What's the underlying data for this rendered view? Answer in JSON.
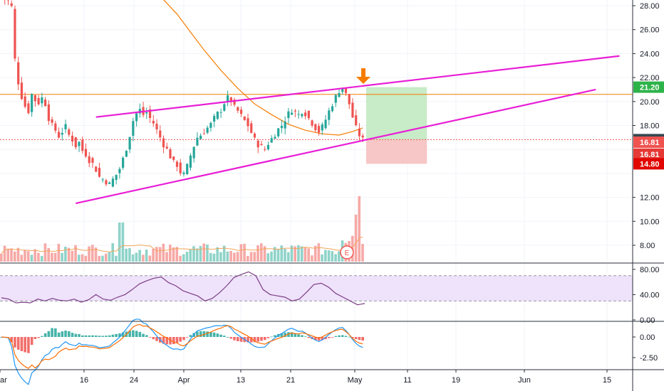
{
  "chart_data": [
    {
      "type": "candlestick",
      "panel": "price",
      "y_ticks": [
        "28.00",
        "26.00",
        "24.00",
        "22.00",
        "20.00",
        "18.00",
        "12.00",
        "10.00",
        "8.00"
      ],
      "ylim": [
        6.8,
        28.8
      ],
      "price_badges": [
        {
          "label": "21.20",
          "value": 21.2,
          "color": "#2eb34a"
        },
        {
          "label": "16.82",
          "value": 16.82,
          "color": "#37474f"
        },
        {
          "label": "16.81",
          "value": 16.6,
          "color": "#ef5350"
        },
        {
          "label": "16.81",
          "value": 15.6,
          "color": "#e53935"
        },
        {
          "label": "14.80",
          "value": 14.8,
          "color": "#e10600"
        }
      ],
      "horizontal_lines": [
        {
          "value": 20.6,
          "color": "#f57c00",
          "style": "solid"
        },
        {
          "value": 16.82,
          "color": "#ef5350",
          "style": "dotted"
        }
      ],
      "close_series": [
        [
          0,
          28.7
        ],
        [
          2,
          28.4
        ],
        [
          3,
          27.9
        ],
        [
          4,
          23.5
        ],
        [
          5,
          21.6
        ],
        [
          6,
          20.4
        ],
        [
          7,
          19.6
        ],
        [
          8,
          19.2
        ],
        [
          9,
          20.6
        ],
        [
          10,
          20.1
        ],
        [
          11,
          19.9
        ],
        [
          12,
          20.3
        ],
        [
          13,
          19.8
        ],
        [
          14,
          18.6
        ],
        [
          15,
          18.0
        ],
        [
          16,
          17.6
        ],
        [
          17,
          17.1
        ],
        [
          18,
          17.5
        ],
        [
          19,
          17.9
        ],
        [
          20,
          17.2
        ],
        [
          21,
          16.8
        ],
        [
          22,
          16.3
        ],
        [
          23,
          16.6
        ],
        [
          24,
          15.9
        ],
        [
          25,
          15.6
        ],
        [
          26,
          15.1
        ],
        [
          27,
          14.8
        ],
        [
          28,
          14.3
        ],
        [
          29,
          13.7
        ],
        [
          30,
          13.5
        ],
        [
          31,
          13.3
        ],
        [
          32,
          13.1
        ],
        [
          33,
          13.5
        ],
        [
          34,
          13.9
        ],
        [
          35,
          14.4
        ],
        [
          36,
          15.2
        ],
        [
          37,
          16.1
        ],
        [
          38,
          17.2
        ],
        [
          39,
          18.4
        ],
        [
          40,
          19.0
        ],
        [
          41,
          19.3
        ],
        [
          42,
          18.9
        ],
        [
          43,
          19.1
        ],
        [
          44,
          18.6
        ],
        [
          45,
          18.2
        ],
        [
          46,
          17.6
        ],
        [
          47,
          17.0
        ],
        [
          48,
          16.4
        ],
        [
          49,
          16.0
        ],
        [
          50,
          15.4
        ],
        [
          51,
          14.9
        ],
        [
          52,
          14.7
        ],
        [
          53,
          14.1
        ],
        [
          54,
          13.9
        ],
        [
          55,
          14.6
        ],
        [
          56,
          15.5
        ],
        [
          57,
          16.3
        ],
        [
          58,
          17.0
        ],
        [
          59,
          17.2
        ],
        [
          60,
          17.5
        ],
        [
          61,
          17.8
        ],
        [
          62,
          18.1
        ],
        [
          63,
          18.6
        ],
        [
          64,
          19.0
        ],
        [
          65,
          19.3
        ],
        [
          66,
          19.9
        ],
        [
          67,
          20.3
        ],
        [
          68,
          20.1
        ],
        [
          69,
          19.5
        ],
        [
          70,
          19.2
        ],
        [
          71,
          18.8
        ],
        [
          72,
          18.4
        ],
        [
          73,
          18.0
        ],
        [
          74,
          17.4
        ],
        [
          75,
          16.8
        ],
        [
          76,
          16.4
        ],
        [
          77,
          16.2
        ],
        [
          78,
          16.0
        ],
        [
          79,
          16.5
        ],
        [
          80,
          16.9
        ],
        [
          81,
          17.3
        ],
        [
          82,
          17.7
        ],
        [
          83,
          18.0
        ],
        [
          84,
          18.5
        ],
        [
          85,
          19.0
        ],
        [
          86,
          19.3
        ],
        [
          87,
          19.1
        ],
        [
          88,
          18.9
        ],
        [
          89,
          19.2
        ],
        [
          90,
          19.0
        ],
        [
          91,
          18.6
        ],
        [
          92,
          18.2
        ],
        [
          93,
          17.8
        ],
        [
          94,
          17.5
        ],
        [
          95,
          17.9
        ],
        [
          96,
          18.5
        ],
        [
          97,
          19.2
        ],
        [
          98,
          19.8
        ],
        [
          99,
          20.4
        ],
        [
          100,
          20.9
        ],
        [
          101,
          21.2
        ],
        [
          102,
          20.6
        ],
        [
          103,
          19.8
        ],
        [
          104,
          18.7
        ],
        [
          105,
          17.8
        ],
        [
          106,
          17.2
        ],
        [
          107,
          16.82
        ]
      ],
      "moving_average": [
        [
          47,
          28.8
        ],
        [
          52,
          27.3
        ],
        [
          56,
          25.8
        ],
        [
          60,
          24.3
        ],
        [
          65,
          22.6
        ],
        [
          70,
          21.1
        ],
        [
          75,
          19.8
        ],
        [
          80,
          18.9
        ],
        [
          85,
          18.1
        ],
        [
          90,
          17.6
        ],
        [
          95,
          17.3
        ],
        [
          100,
          17.2
        ],
        [
          104,
          17.5
        ],
        [
          107,
          17.8
        ]
      ],
      "trendlines": [
        {
          "from": [
            28,
            18.7
          ],
          "to": [
            107,
            21.2
          ],
          "color": "#e81ed6",
          "extend_to": [
            183,
            23.8
          ]
        },
        {
          "from": [
            22,
            11.5
          ],
          "to": [
            107,
            16.9
          ],
          "color": "#e81ed6",
          "extend_to": [
            176,
            21.0
          ]
        }
      ],
      "position": {
        "entry": 16.82,
        "target": 21.2,
        "stop": 14.8,
        "x_from": 108,
        "x_to": 126
      },
      "annotation": "arrow-down-marker"
    },
    {
      "type": "bar",
      "panel": "volume",
      "earnings_badge": "E"
    },
    {
      "type": "line",
      "panel": "rsi",
      "y_ticks": [
        "80.00",
        "40.00",
        "0.00"
      ],
      "ylim": [
        0,
        90
      ],
      "band": [
        30,
        70
      ],
      "values": [
        [
          0,
          35
        ],
        [
          5,
          33
        ],
        [
          10,
          27
        ],
        [
          15,
          28
        ],
        [
          20,
          27
        ],
        [
          25,
          33
        ],
        [
          30,
          30
        ],
        [
          35,
          34
        ],
        [
          40,
          31
        ],
        [
          45,
          30
        ],
        [
          50,
          33
        ],
        [
          55,
          28
        ],
        [
          60,
          32
        ],
        [
          65,
          40
        ],
        [
          70,
          33
        ],
        [
          75,
          31
        ],
        [
          80,
          36
        ],
        [
          85,
          40
        ],
        [
          90,
          48
        ],
        [
          95,
          57
        ],
        [
          100,
          62
        ],
        [
          105,
          66
        ],
        [
          110,
          68
        ],
        [
          115,
          59
        ],
        [
          120,
          54
        ],
        [
          125,
          46
        ],
        [
          130,
          42
        ],
        [
          135,
          38
        ],
        [
          140,
          30
        ],
        [
          145,
          34
        ],
        [
          150,
          43
        ],
        [
          155,
          54
        ],
        [
          160,
          67
        ],
        [
          165,
          72
        ],
        [
          170,
          76
        ],
        [
          175,
          70
        ],
        [
          180,
          48
        ],
        [
          185,
          40
        ],
        [
          190,
          38
        ],
        [
          195,
          36
        ],
        [
          200,
          30
        ],
        [
          205,
          33
        ],
        [
          210,
          44
        ],
        [
          215,
          56
        ],
        [
          220,
          58
        ],
        [
          225,
          52
        ],
        [
          230,
          42
        ],
        [
          235,
          36
        ],
        [
          240,
          30
        ],
        [
          245,
          24
        ],
        [
          250,
          26
        ]
      ]
    },
    {
      "type": "bar",
      "panel": "macd",
      "y_ticks": [
        "0.00",
        "-2.50"
      ],
      "ylim": [
        -3.8,
        1.2
      ]
    }
  ],
  "x_axis": {
    "labels": [
      "ar",
      "16",
      "24",
      "Apr",
      "13",
      "21",
      "May",
      "11",
      "19",
      "Jun",
      "15"
    ]
  },
  "colors": {
    "up": "#26a69a",
    "down": "#ef5350",
    "ma": "#f57c00",
    "trend": "#e81ed6",
    "profit": "#c8ebc8",
    "loss": "#f7c6c6",
    "rsi": "#7b3f84",
    "rsi_band": "#efe2fb",
    "macd": "#2196f3",
    "signal": "#ff6d00"
  }
}
